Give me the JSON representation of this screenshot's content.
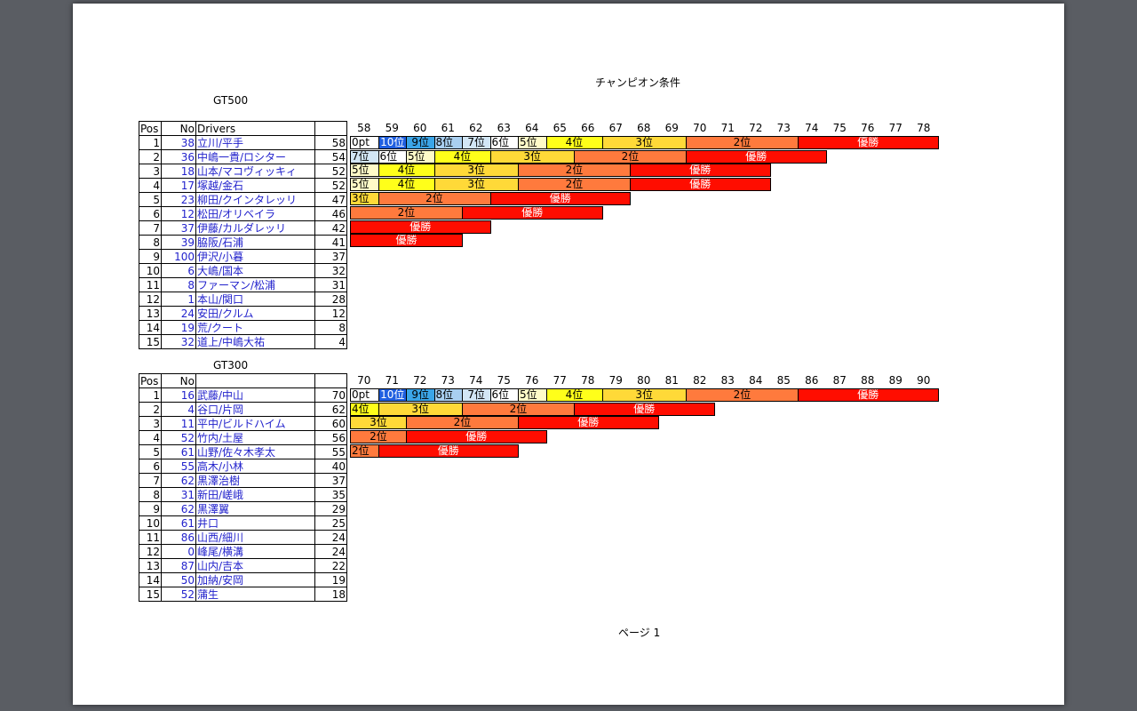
{
  "document": {
    "title": "チャンピオン条件",
    "footer": "ページ 1"
  },
  "colors": {
    "win": "#ff0d00",
    "second": "#ff7a3d",
    "third": "#ffd938",
    "fourth": "#ffff1a",
    "fifth": "#fffbc8",
    "sixth": "#ffffff",
    "seventh": "#d2e6f5",
    "eighth": "#a9cff0",
    "ninth": "#3ba5e8",
    "tenth": "#1f5fe0",
    "zero": "#ffffff",
    "driver_text": "#2222cc"
  },
  "gt500": {
    "label": "GT500",
    "headers": {
      "pos": "Pos",
      "no": "No",
      "drivers": "Drivers",
      "points": ""
    },
    "axis": [
      "58",
      "59",
      "60",
      "61",
      "62",
      "63",
      "64",
      "65",
      "66",
      "67",
      "68",
      "69",
      "70",
      "71",
      "72",
      "73",
      "74",
      "75",
      "76",
      "77",
      "78"
    ],
    "rows": [
      {
        "pos": "1",
        "no": "38",
        "drivers": "立川/平手",
        "points": "58"
      },
      {
        "pos": "2",
        "no": "36",
        "drivers": "中嶋一貴/ロシター",
        "points": "54"
      },
      {
        "pos": "3",
        "no": "18",
        "drivers": "山本/マコヴィッキィ",
        "points": "52"
      },
      {
        "pos": "4",
        "no": "17",
        "drivers": "塚越/金石",
        "points": "52"
      },
      {
        "pos": "5",
        "no": "23",
        "drivers": "柳田/クインタレッリ",
        "points": "47"
      },
      {
        "pos": "6",
        "no": "12",
        "drivers": "松田/オリベイラ",
        "points": "46"
      },
      {
        "pos": "7",
        "no": "37",
        "drivers": "伊藤/カルダレッリ",
        "points": "42"
      },
      {
        "pos": "8",
        "no": "39",
        "drivers": "脇阪/石浦",
        "points": "41"
      },
      {
        "pos": "9",
        "no": "100",
        "drivers": "伊沢/小暮",
        "points": "37"
      },
      {
        "pos": "10",
        "no": "6",
        "drivers": "大嶋/国本",
        "points": "32"
      },
      {
        "pos": "11",
        "no": "8",
        "drivers": "ファーマン/松浦",
        "points": "31"
      },
      {
        "pos": "12",
        "no": "1",
        "drivers": "本山/関口",
        "points": "28"
      },
      {
        "pos": "13",
        "no": "24",
        "drivers": "安田/クルム",
        "points": "12"
      },
      {
        "pos": "14",
        "no": "19",
        "drivers": "荒/クート",
        "points": "8"
      },
      {
        "pos": "15",
        "no": "32",
        "drivers": "道上/中嶋大祐",
        "points": "4"
      }
    ],
    "bars": [
      [
        {
          "label": "0pt",
          "span": 1,
          "color": "zero",
          "align": "left"
        },
        {
          "label": "10位",
          "span": 1,
          "color": "tenth",
          "text": "#ffffff"
        },
        {
          "label": "9位",
          "span": 1,
          "color": "ninth"
        },
        {
          "label": "8位",
          "span": 1,
          "color": "eighth",
          "align": "left"
        },
        {
          "label": "7位",
          "span": 1,
          "color": "seventh"
        },
        {
          "label": "6位",
          "span": 1,
          "color": "sixth",
          "align": "left"
        },
        {
          "label": "5位",
          "span": 1,
          "color": "fifth",
          "align": "left"
        },
        {
          "label": "4位",
          "span": 2,
          "color": "fourth"
        },
        {
          "label": "3位",
          "span": 3,
          "color": "third"
        },
        {
          "label": "2位",
          "span": 4,
          "color": "second"
        },
        {
          "label": "優勝",
          "span": 5,
          "color": "win",
          "text": "#ffffff"
        }
      ],
      [
        {
          "label": "7位",
          "span": 1,
          "color": "seventh",
          "align": "left"
        },
        {
          "label": "6位",
          "span": 1,
          "color": "sixth",
          "align": "left"
        },
        {
          "label": "5位",
          "span": 1,
          "color": "fifth",
          "align": "left"
        },
        {
          "label": "4位",
          "span": 2,
          "color": "fourth"
        },
        {
          "label": "3位",
          "span": 3,
          "color": "third"
        },
        {
          "label": "2位",
          "span": 4,
          "color": "second"
        },
        {
          "label": "優勝",
          "span": 5,
          "color": "win",
          "text": "#ffffff"
        }
      ],
      [
        {
          "label": "5位",
          "span": 1,
          "color": "fifth",
          "align": "left"
        },
        {
          "label": "4位",
          "span": 2,
          "color": "fourth"
        },
        {
          "label": "3位",
          "span": 3,
          "color": "third"
        },
        {
          "label": "2位",
          "span": 4,
          "color": "second"
        },
        {
          "label": "優勝",
          "span": 5,
          "color": "win",
          "text": "#ffffff"
        }
      ],
      [
        {
          "label": "5位",
          "span": 1,
          "color": "fifth",
          "align": "left"
        },
        {
          "label": "4位",
          "span": 2,
          "color": "fourth"
        },
        {
          "label": "3位",
          "span": 3,
          "color": "third"
        },
        {
          "label": "2位",
          "span": 4,
          "color": "second"
        },
        {
          "label": "優勝",
          "span": 5,
          "color": "win",
          "text": "#ffffff"
        }
      ],
      [
        {
          "label": "3位",
          "span": 1,
          "color": "third",
          "align": "left"
        },
        {
          "label": "2位",
          "span": 4,
          "color": "second"
        },
        {
          "label": "優勝",
          "span": 5,
          "color": "win",
          "text": "#ffffff"
        }
      ],
      [
        {
          "label": "2位",
          "span": 4,
          "color": "second"
        },
        {
          "label": "優勝",
          "span": 5,
          "color": "win",
          "text": "#ffffff"
        }
      ],
      [
        {
          "label": "優勝",
          "span": 5,
          "color": "win",
          "text": "#ffffff"
        }
      ],
      [
        {
          "label": "優勝",
          "span": 4,
          "color": "win",
          "text": "#ffffff"
        }
      ]
    ]
  },
  "gt300": {
    "label": "GT300",
    "headers": {
      "pos": "Pos",
      "no": "No",
      "drivers": "",
      "points": ""
    },
    "axis": [
      "70",
      "71",
      "72",
      "73",
      "74",
      "75",
      "76",
      "77",
      "78",
      "79",
      "80",
      "81",
      "82",
      "83",
      "84",
      "85",
      "86",
      "87",
      "88",
      "89",
      "90"
    ],
    "rows": [
      {
        "pos": "1",
        "no": "16",
        "drivers": "武藤/中山",
        "points": "70"
      },
      {
        "pos": "2",
        "no": "4",
        "drivers": "谷口/片岡",
        "points": "62"
      },
      {
        "pos": "3",
        "no": "11",
        "drivers": "平中/ビルドハイム",
        "points": "60"
      },
      {
        "pos": "4",
        "no": "52",
        "drivers": "竹内/土屋",
        "points": "56"
      },
      {
        "pos": "5",
        "no": "61",
        "drivers": "山野/佐々木孝太",
        "points": "55"
      },
      {
        "pos": "6",
        "no": "55",
        "drivers": "高木/小林",
        "points": "40"
      },
      {
        "pos": "7",
        "no": "62",
        "drivers": "黒澤治樹",
        "points": "37"
      },
      {
        "pos": "8",
        "no": "31",
        "drivers": "新田/嵯峨",
        "points": "35"
      },
      {
        "pos": "9",
        "no": "62",
        "drivers": "黒澤翼",
        "points": "29"
      },
      {
        "pos": "10",
        "no": "61",
        "drivers": "井口",
        "points": "25"
      },
      {
        "pos": "11",
        "no": "86",
        "drivers": "山西/細川",
        "points": "24"
      },
      {
        "pos": "12",
        "no": "0",
        "drivers": "峰尾/横溝",
        "points": "24"
      },
      {
        "pos": "13",
        "no": "87",
        "drivers": "山内/吉本",
        "points": "22"
      },
      {
        "pos": "14",
        "no": "50",
        "drivers": "加納/安岡",
        "points": "19"
      },
      {
        "pos": "15",
        "no": "52",
        "drivers": "蒲生",
        "points": "18"
      }
    ],
    "bars": [
      [
        {
          "label": "0pt",
          "span": 1,
          "color": "zero",
          "align": "left"
        },
        {
          "label": "10位",
          "span": 1,
          "color": "tenth",
          "text": "#ffffff"
        },
        {
          "label": "9位",
          "span": 1,
          "color": "ninth"
        },
        {
          "label": "8位",
          "span": 1,
          "color": "eighth",
          "align": "left"
        },
        {
          "label": "7位",
          "span": 1,
          "color": "seventh"
        },
        {
          "label": "6位",
          "span": 1,
          "color": "sixth",
          "align": "left"
        },
        {
          "label": "5位",
          "span": 1,
          "color": "fifth",
          "align": "left"
        },
        {
          "label": "4位",
          "span": 2,
          "color": "fourth"
        },
        {
          "label": "3位",
          "span": 3,
          "color": "third"
        },
        {
          "label": "2位",
          "span": 4,
          "color": "second"
        },
        {
          "label": "優勝",
          "span": 5,
          "color": "win",
          "text": "#ffffff"
        }
      ],
      [
        {
          "label": "4位",
          "span": 1,
          "color": "fourth",
          "align": "left"
        },
        {
          "label": "3位",
          "span": 3,
          "color": "third"
        },
        {
          "label": "2位",
          "span": 4,
          "color": "second"
        },
        {
          "label": "優勝",
          "span": 5,
          "color": "win",
          "text": "#ffffff"
        }
      ],
      [
        {
          "label": "3位",
          "span": 2,
          "color": "third"
        },
        {
          "label": "2位",
          "span": 4,
          "color": "second"
        },
        {
          "label": "優勝",
          "span": 5,
          "color": "win",
          "text": "#ffffff"
        }
      ],
      [
        {
          "label": "2位",
          "span": 2,
          "color": "second"
        },
        {
          "label": "優勝",
          "span": 5,
          "color": "win",
          "text": "#ffffff"
        }
      ],
      [
        {
          "label": "2位",
          "span": 1,
          "color": "second",
          "align": "left"
        },
        {
          "label": "優勝",
          "span": 5,
          "color": "win",
          "text": "#ffffff"
        }
      ]
    ]
  }
}
